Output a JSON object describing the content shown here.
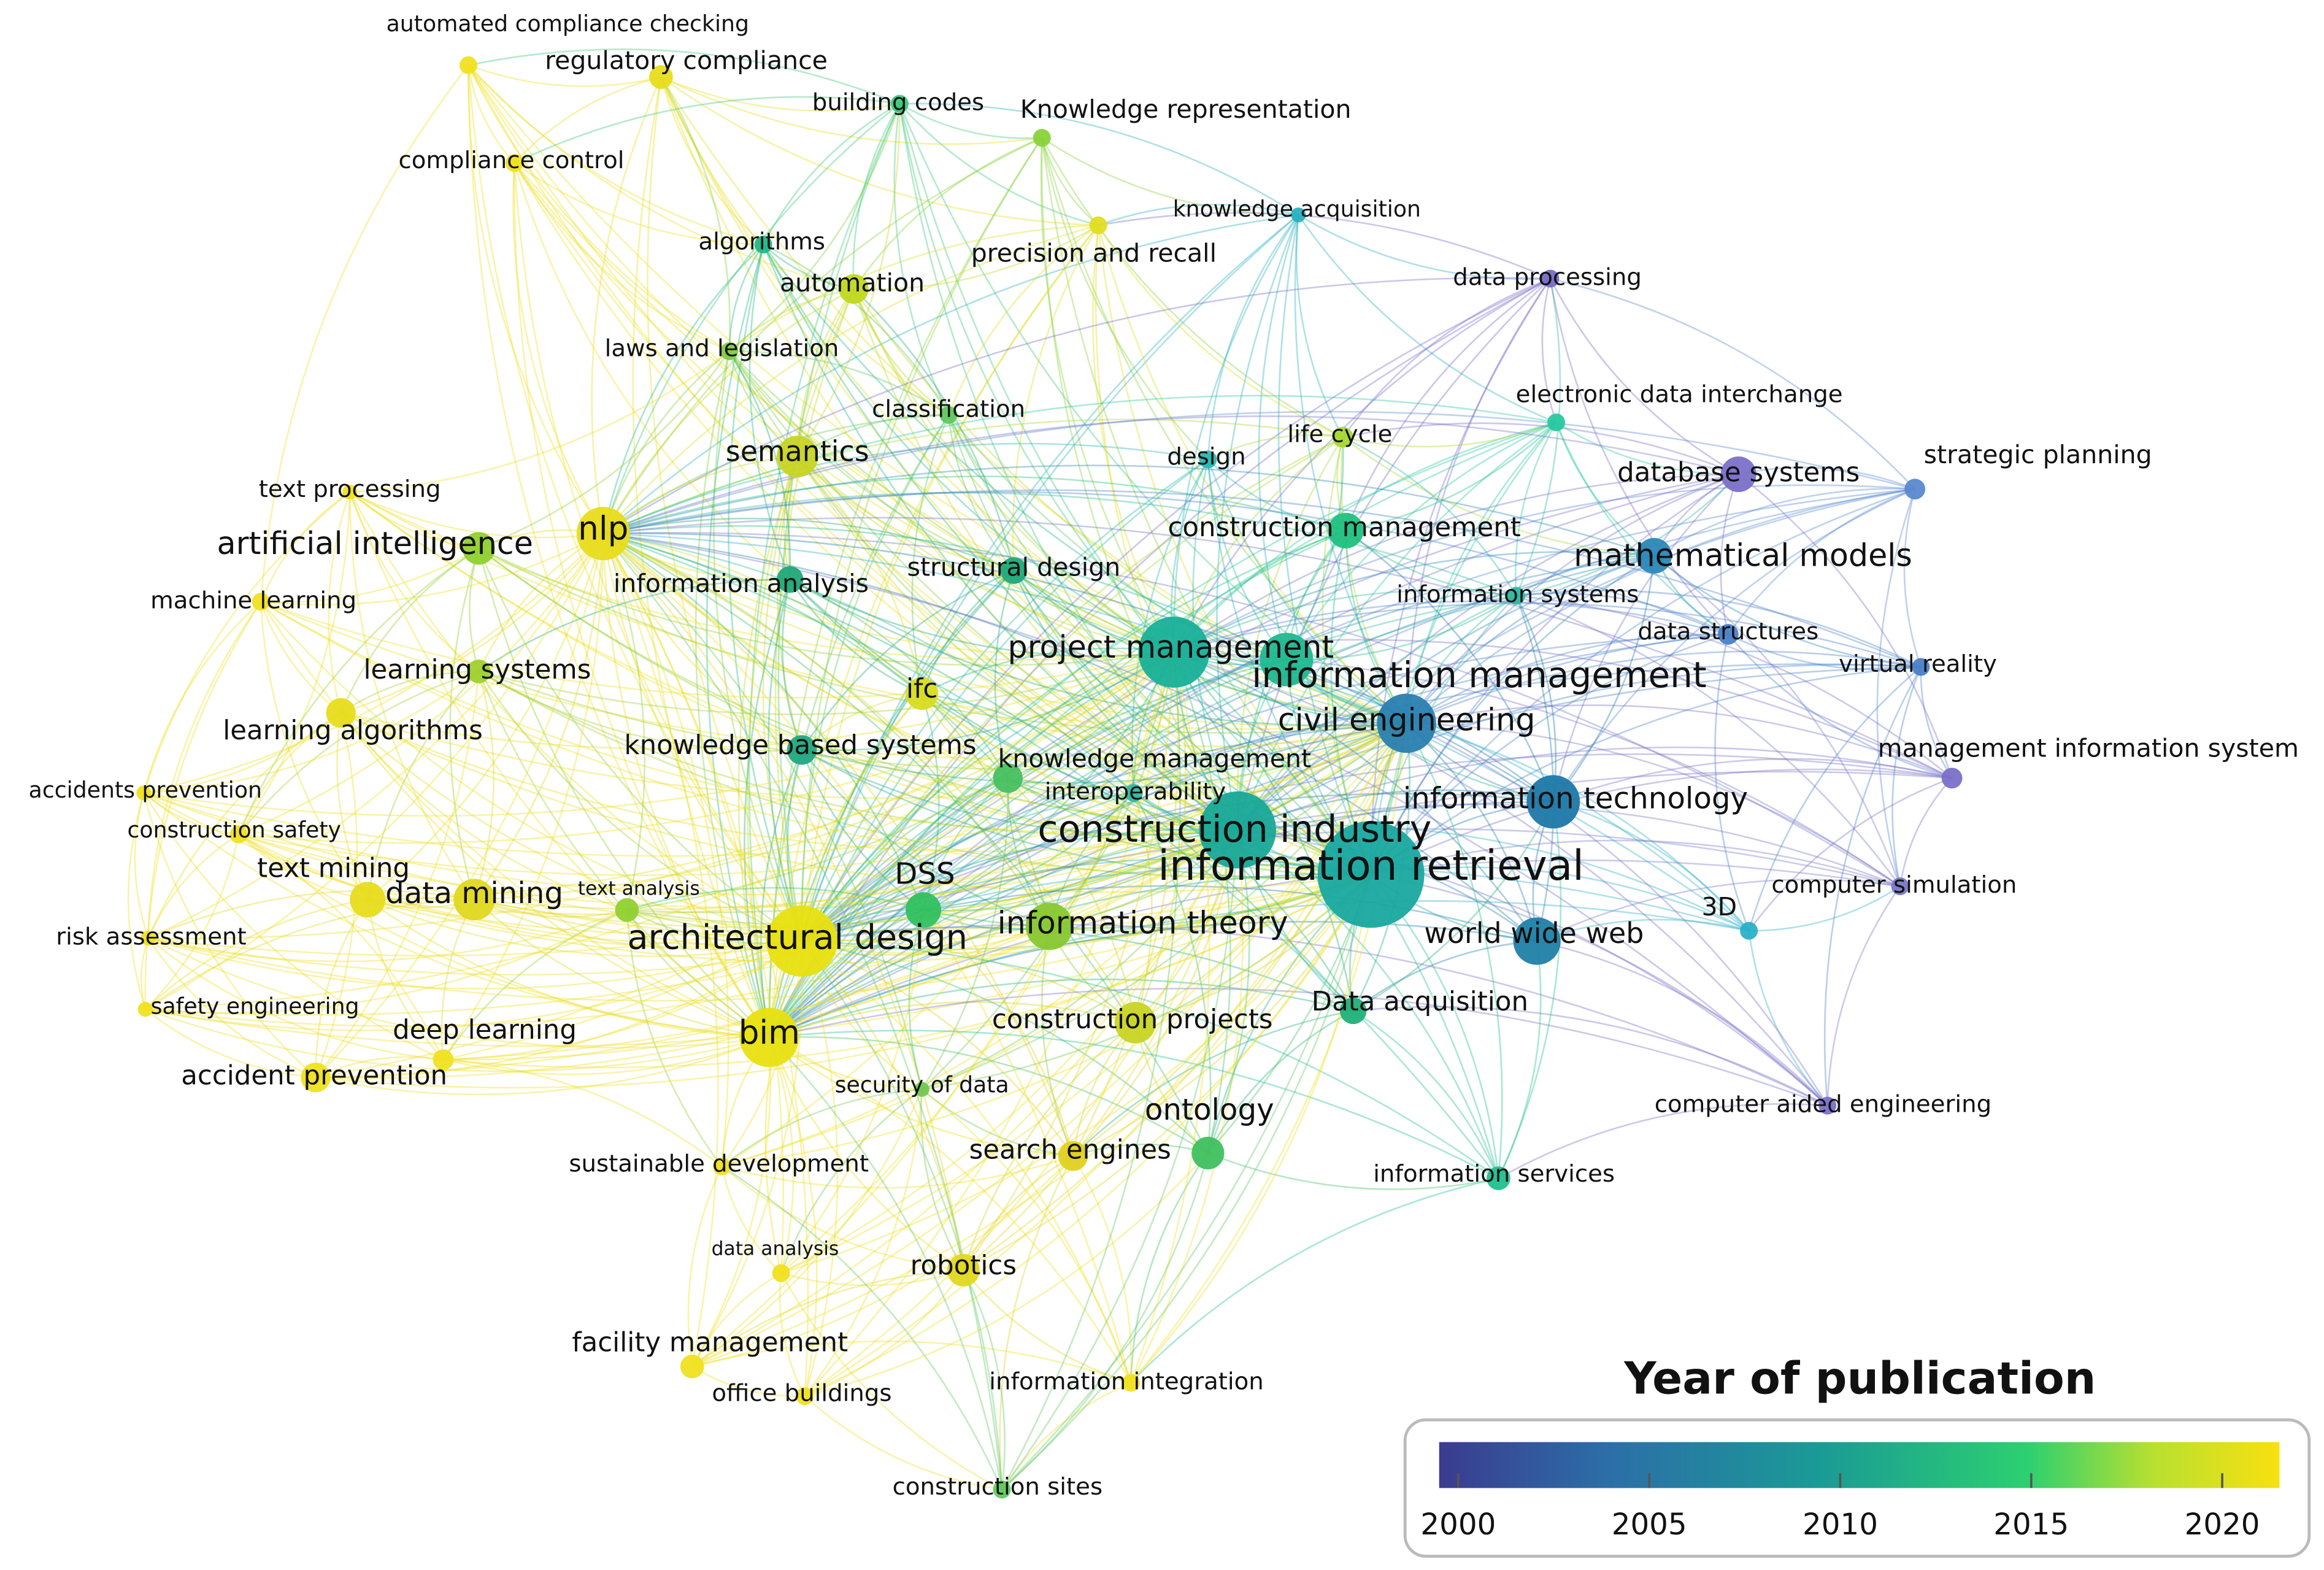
{
  "nodes": [
    {
      "label": "automated compliance checking",
      "color": "#f0e020"
    },
    {
      "label": "regulatory compliance",
      "color": "#e8dc1c"
    },
    {
      "label": "building codes",
      "color": "#3cc87a"
    },
    {
      "label": "Knowledge representation",
      "color": "#8ad23a"
    },
    {
      "label": "compliance control",
      "color": "#f0e020"
    },
    {
      "label": "knowledge acquisition",
      "color": "#2ab0c0"
    },
    {
      "label": "precision and recall",
      "color": "#e0de20"
    },
    {
      "label": "algorithms",
      "color": "#20b888"
    },
    {
      "label": "automation",
      "color": "#c0d820"
    },
    {
      "label": "data processing",
      "color": "#7a6cc8"
    },
    {
      "label": "laws and legislation",
      "color": "#80cc40"
    },
    {
      "label": "classification",
      "color": "#60c860"
    },
    {
      "label": "electronic data interchange",
      "color": "#28c8a0"
    },
    {
      "label": "life cycle",
      "color": "#a8d830"
    },
    {
      "label": "design",
      "color": "#28b8b0"
    },
    {
      "label": "semantics",
      "color": "#c8d424"
    },
    {
      "label": "strategic planning",
      "color": "#5a88d0"
    },
    {
      "label": "database systems",
      "color": "#7a70c8"
    },
    {
      "label": "text processing",
      "color": "#f0e020"
    },
    {
      "label": "nlp",
      "color": "#e8dc1c"
    },
    {
      "label": "artificial intelligence",
      "color": "#90d030"
    },
    {
      "label": "construction management",
      "color": "#20c080"
    },
    {
      "label": "mathematical models",
      "color": "#2a88b8"
    },
    {
      "label": "information analysis",
      "color": "#20a878"
    },
    {
      "label": "structural design",
      "color": "#20a878"
    },
    {
      "label": "machine learning",
      "color": "#f0e020"
    },
    {
      "label": "information systems",
      "color": "#30b8a0"
    },
    {
      "label": "data structures",
      "color": "#4a80c8"
    },
    {
      "label": "project management",
      "color": "#18b098"
    },
    {
      "label": "information management",
      "color": "#20b890"
    },
    {
      "label": "learning systems",
      "color": "#a0d030"
    },
    {
      "label": "virtual reality",
      "color": "#4a80c8"
    },
    {
      "label": "ifc",
      "color": "#d8dc20"
    },
    {
      "label": "civil engineering",
      "color": "#2a80b0"
    },
    {
      "label": "learning algorithms",
      "color": "#e8dc1c"
    },
    {
      "label": "knowledge based systems",
      "color": "#20a880"
    },
    {
      "label": "management information system",
      "color": "#7a70c8"
    },
    {
      "label": "knowledge management",
      "color": "#48c060"
    },
    {
      "label": "interoperability",
      "color": "#30b8a0"
    },
    {
      "label": "information technology",
      "color": "#1e78a8"
    },
    {
      "label": "accidents prevention",
      "color": "#f0e020"
    },
    {
      "label": "construction safety",
      "color": "#f0e020"
    },
    {
      "label": "construction industry",
      "color": "#18a898"
    },
    {
      "label": "information retrieval",
      "color": "#18a8a0"
    },
    {
      "label": "DSS",
      "color": "#30c060"
    },
    {
      "label": "text mining",
      "color": "#e8dc1c"
    },
    {
      "label": "data mining",
      "color": "#e0d820"
    },
    {
      "label": "text analysis",
      "color": "#90d030"
    },
    {
      "label": "3D",
      "color": "#2ab0c8"
    },
    {
      "label": "computer simulation",
      "color": "#7a78c8"
    },
    {
      "label": "risk assessment",
      "color": "#f0e020"
    },
    {
      "label": "architectural design",
      "color": "#e8e010"
    },
    {
      "label": "information theory",
      "color": "#88c830"
    },
    {
      "label": "world wide web",
      "color": "#2080a8"
    },
    {
      "label": "safety engineering",
      "color": "#f0e020"
    },
    {
      "label": "Data acquisition",
      "color": "#20b078"
    },
    {
      "label": "construction projects",
      "color": "#c8d424"
    },
    {
      "label": "deep learning",
      "color": "#f0e020"
    },
    {
      "label": "bim",
      "color": "#e8e010"
    },
    {
      "label": "accident prevention",
      "color": "#f0e020"
    },
    {
      "label": "security of data",
      "color": "#70c850"
    },
    {
      "label": "computer aided engineering",
      "color": "#7a70c8"
    },
    {
      "label": "ontology",
      "color": "#40c060"
    },
    {
      "label": "search engines",
      "color": "#e0d020"
    },
    {
      "label": "sustainable development",
      "color": "#f0e020"
    },
    {
      "label": "information services",
      "color": "#20c090"
    },
    {
      "label": "data analysis",
      "color": "#f0e020"
    },
    {
      "label": "robotics",
      "color": "#e0d820"
    },
    {
      "label": "facility management",
      "color": "#f0e020"
    },
    {
      "label": "office buildings",
      "color": "#f0e020"
    },
    {
      "label": "information integration",
      "color": "#f0e020"
    },
    {
      "label": "construction sites",
      "color": "#60c860"
    }
  ],
  "legend": {
    "title": "Year of publication",
    "range": [
      1999.5,
      2021.5
    ],
    "ticks": [
      2000,
      2005,
      2010,
      2015,
      2020
    ]
  }
}
